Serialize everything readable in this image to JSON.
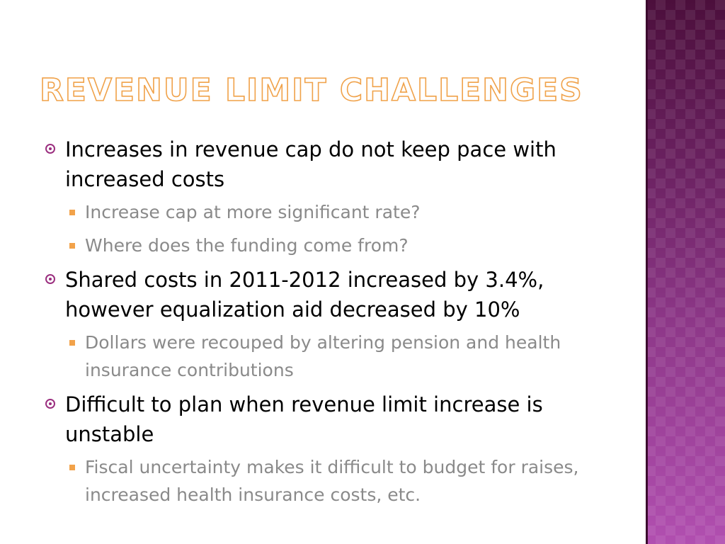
{
  "slide": {
    "title": "Revenue Limit Challenges",
    "accent_color": "#f0a24a",
    "bullet_color": "#9b2f7f",
    "band_colors": [
      "#4c0f3c",
      "#b14fb0"
    ],
    "points": [
      {
        "text": "Increases in revenue cap do not keep pace with increased costs",
        "subpoints": [
          "Increase cap at more significant rate?",
          "Where does the funding come from?"
        ]
      },
      {
        "text": "Shared costs in 2011-2012 increased by 3.4%, however equalization aid decreased by 10%",
        "subpoints": [
          "Dollars were recouped by altering pension and health insurance contributions"
        ]
      },
      {
        "text": "Difficult to plan when revenue limit increase is unstable",
        "subpoints": [
          "Fiscal uncertainty makes it difficult to budget for raises, increased health insurance costs, etc."
        ]
      }
    ]
  }
}
